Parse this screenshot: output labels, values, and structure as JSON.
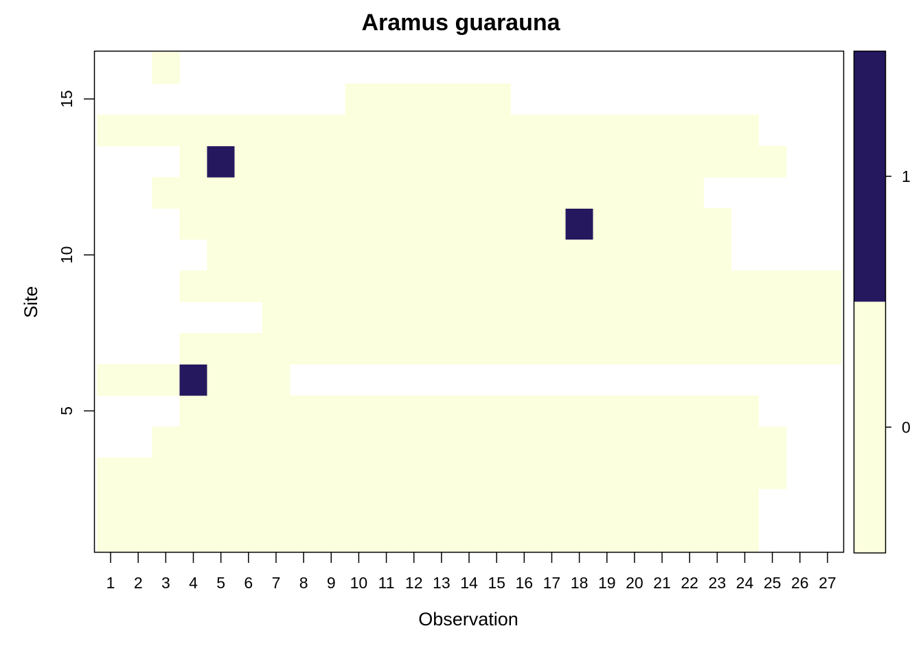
{
  "chart_data": {
    "type": "heatmap",
    "title": "Aramus guarauna",
    "xlabel": "Observation",
    "ylabel": "Site",
    "x": [
      1,
      2,
      3,
      4,
      5,
      6,
      7,
      8,
      9,
      10,
      11,
      12,
      13,
      14,
      15,
      16,
      17,
      18,
      19,
      20,
      21,
      22,
      23,
      24,
      25,
      26,
      27
    ],
    "y": [
      1,
      2,
      3,
      4,
      5,
      6,
      7,
      8,
      9,
      10,
      11,
      12,
      13,
      14,
      15,
      16
    ],
    "y_ticks": [
      5,
      10,
      15
    ],
    "xlim": [
      0.5,
      27.5
    ],
    "ylim": [
      0.5,
      16.5
    ],
    "colors": {
      "0": "#fcffdd",
      "1": "#26185f",
      "missing": "#ffffff"
    },
    "legend": {
      "position": "right",
      "levels": [
        "0",
        "1"
      ]
    },
    "rows": [
      {
        "site": 1,
        "values": [
          0,
          0,
          0,
          0,
          0,
          0,
          0,
          0,
          0,
          0,
          0,
          0,
          0,
          0,
          0,
          0,
          0,
          0,
          0,
          0,
          0,
          0,
          0,
          0,
          null,
          null,
          null
        ]
      },
      {
        "site": 2,
        "values": [
          0,
          0,
          0,
          0,
          0,
          0,
          0,
          0,
          0,
          0,
          0,
          0,
          0,
          0,
          0,
          0,
          0,
          0,
          0,
          0,
          0,
          0,
          0,
          0,
          null,
          null,
          null
        ]
      },
      {
        "site": 3,
        "values": [
          0,
          0,
          0,
          0,
          0,
          0,
          0,
          0,
          0,
          0,
          0,
          0,
          0,
          0,
          0,
          0,
          0,
          0,
          0,
          0,
          0,
          0,
          0,
          0,
          0,
          null,
          null
        ]
      },
      {
        "site": 4,
        "values": [
          null,
          null,
          0,
          0,
          0,
          0,
          0,
          0,
          0,
          0,
          0,
          0,
          0,
          0,
          0,
          0,
          0,
          0,
          0,
          0,
          0,
          0,
          0,
          0,
          0,
          null,
          null
        ]
      },
      {
        "site": 5,
        "values": [
          null,
          null,
          null,
          0,
          0,
          0,
          0,
          0,
          0,
          0,
          0,
          0,
          0,
          0,
          0,
          0,
          0,
          0,
          0,
          0,
          0,
          0,
          0,
          0,
          null,
          null,
          null
        ]
      },
      {
        "site": 6,
        "values": [
          0,
          0,
          0,
          1,
          0,
          0,
          0,
          null,
          null,
          null,
          null,
          null,
          null,
          null,
          null,
          null,
          null,
          null,
          null,
          null,
          null,
          null,
          null,
          null,
          null,
          null,
          null
        ]
      },
      {
        "site": 7,
        "values": [
          null,
          null,
          null,
          0,
          0,
          0,
          0,
          0,
          0,
          0,
          0,
          0,
          0,
          0,
          0,
          0,
          0,
          0,
          0,
          0,
          0,
          0,
          0,
          0,
          0,
          0,
          0
        ]
      },
      {
        "site": 8,
        "values": [
          null,
          null,
          null,
          null,
          null,
          null,
          0,
          0,
          0,
          0,
          0,
          0,
          0,
          0,
          0,
          0,
          0,
          0,
          0,
          0,
          0,
          0,
          0,
          0,
          0,
          0,
          0
        ]
      },
      {
        "site": 9,
        "values": [
          null,
          null,
          null,
          0,
          0,
          0,
          0,
          0,
          0,
          0,
          0,
          0,
          0,
          0,
          0,
          0,
          0,
          0,
          0,
          0,
          0,
          0,
          0,
          0,
          0,
          0,
          0
        ]
      },
      {
        "site": 10,
        "values": [
          null,
          null,
          null,
          null,
          0,
          0,
          0,
          0,
          0,
          0,
          0,
          0,
          0,
          0,
          0,
          0,
          0,
          0,
          0,
          0,
          0,
          0,
          0,
          null,
          null,
          null,
          null
        ]
      },
      {
        "site": 11,
        "values": [
          null,
          null,
          null,
          0,
          0,
          0,
          0,
          0,
          0,
          0,
          0,
          0,
          0,
          0,
          0,
          0,
          0,
          1,
          0,
          0,
          0,
          0,
          0,
          null,
          null,
          null,
          null
        ]
      },
      {
        "site": 12,
        "values": [
          null,
          null,
          0,
          0,
          0,
          0,
          0,
          0,
          0,
          0,
          0,
          0,
          0,
          0,
          0,
          0,
          0,
          0,
          0,
          0,
          0,
          0,
          null,
          null,
          null,
          null,
          null
        ]
      },
      {
        "site": 13,
        "values": [
          null,
          null,
          null,
          0,
          1,
          0,
          0,
          0,
          0,
          0,
          0,
          0,
          0,
          0,
          0,
          0,
          0,
          0,
          0,
          0,
          0,
          0,
          0,
          0,
          0,
          null,
          null
        ]
      },
      {
        "site": 14,
        "values": [
          0,
          0,
          0,
          0,
          0,
          0,
          0,
          0,
          0,
          0,
          0,
          0,
          0,
          0,
          0,
          0,
          0,
          0,
          0,
          0,
          0,
          0,
          0,
          0,
          null,
          null,
          null
        ]
      },
      {
        "site": 15,
        "values": [
          null,
          null,
          null,
          null,
          null,
          null,
          null,
          null,
          null,
          0,
          0,
          0,
          0,
          0,
          0,
          null,
          null,
          null,
          null,
          null,
          null,
          null,
          null,
          null,
          null,
          null,
          null
        ]
      },
      {
        "site": 16,
        "values": [
          null,
          null,
          0,
          null,
          null,
          null,
          null,
          null,
          null,
          null,
          null,
          null,
          null,
          null,
          null,
          null,
          null,
          null,
          null,
          null,
          null,
          null,
          null,
          null,
          null,
          null,
          null
        ]
      }
    ]
  }
}
